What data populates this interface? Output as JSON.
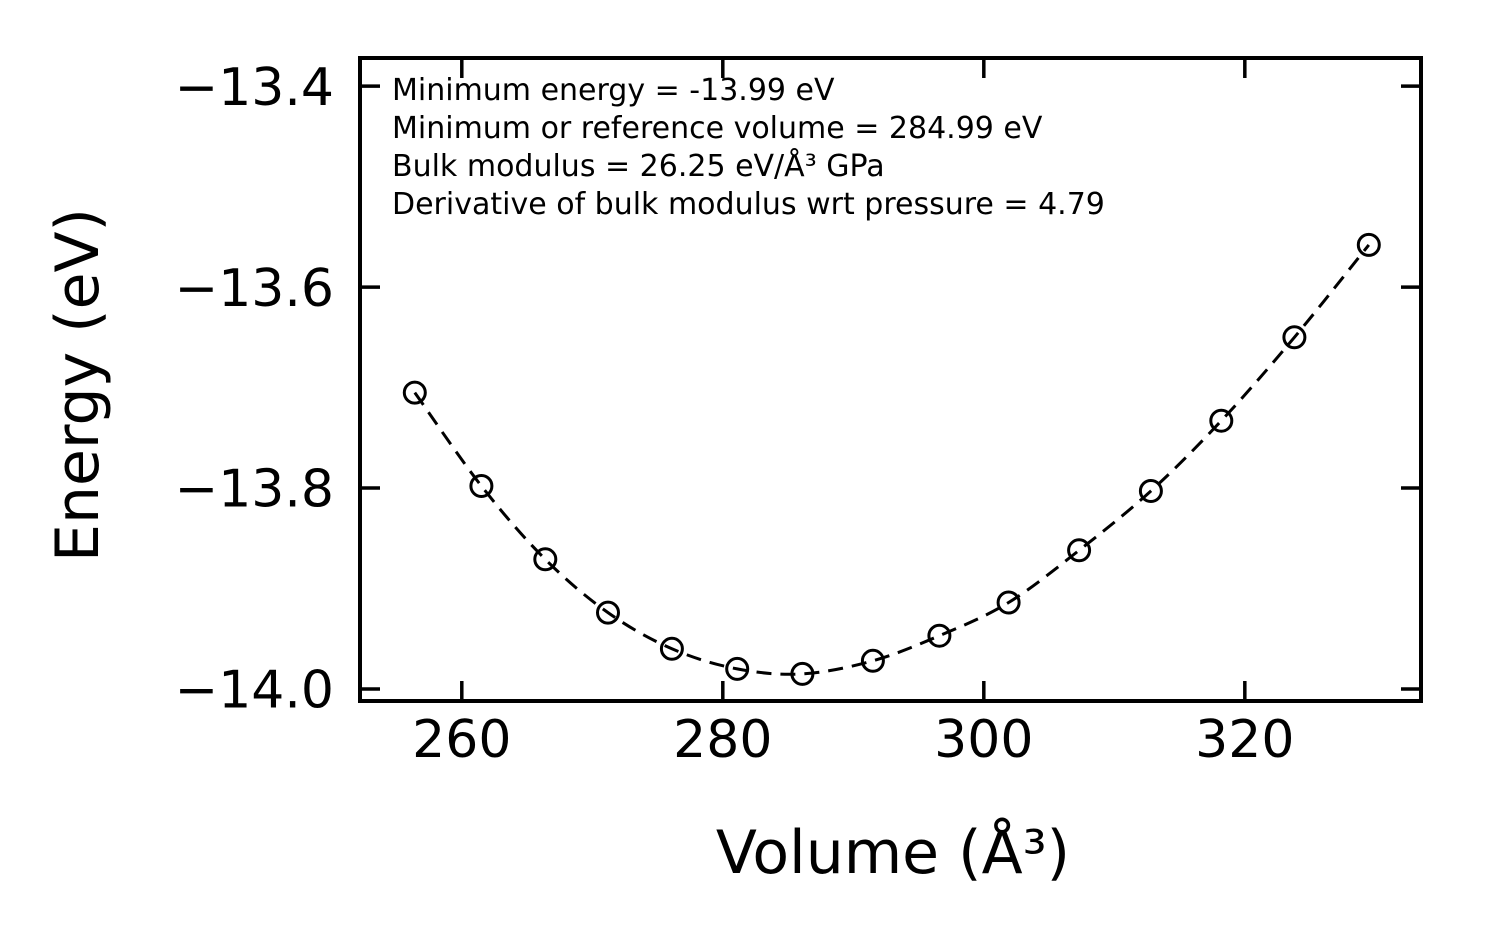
{
  "figure": {
    "background_color": "#ffffff",
    "foreground_color": "#000000"
  },
  "chart_data": {
    "type": "scatter",
    "title": "",
    "xlabel": "Volume (Å³)",
    "ylabel": "Energy (eV)",
    "xlim": [
      252.2,
      333.5
    ],
    "ylim": [
      -14.012,
      -13.372
    ],
    "xticks": [
      260,
      280,
      300,
      320
    ],
    "xtick_labels": [
      "260",
      "280",
      "300",
      "320"
    ],
    "yticks": [
      -13.4,
      -13.6,
      -13.8,
      -14.0
    ],
    "ytick_labels": [
      "−13.4",
      "−13.6",
      "−13.8",
      "−14.0"
    ],
    "grid": false,
    "legend": "none",
    "color": "#000000",
    "series": [
      {
        "name": "calculated-energies",
        "type": "scatter",
        "marker": "open-circle",
        "x": [
          256.4,
          261.5,
          266.4,
          271.2,
          276.1,
          281.1,
          286.1,
          291.5,
          296.6,
          301.9,
          307.3,
          312.8,
          318.2,
          323.8,
          329.5
        ],
        "y": [
          -13.705,
          -13.798,
          -13.871,
          -13.924,
          -13.96,
          -13.98,
          -13.985,
          -13.972,
          -13.947,
          -13.914,
          -13.862,
          -13.803,
          -13.733,
          -13.65,
          -13.558
        ]
      },
      {
        "name": "eos-fit",
        "type": "line",
        "style": "dashed",
        "through": "calculated-energies"
      }
    ],
    "annotations": [
      "Minimum energy = -13.99 eV",
      "Minimum or reference volume = 284.99 eV",
      "Bulk modulus = 26.25 eV/Å³ GPa",
      "Derivative of bulk modulus wrt pressure = 4.79"
    ]
  }
}
